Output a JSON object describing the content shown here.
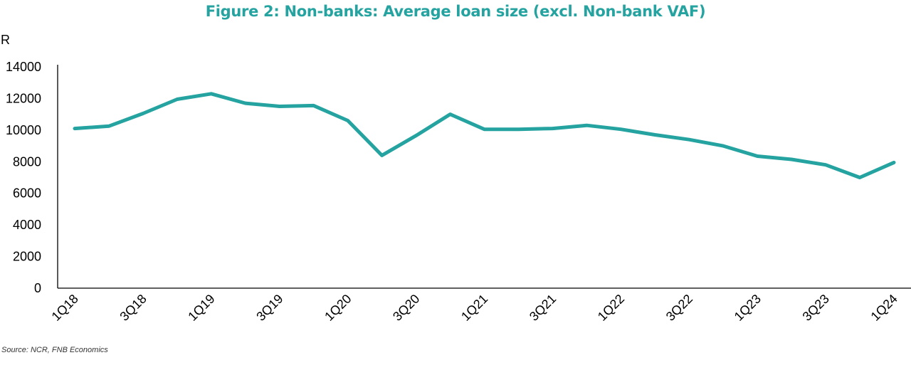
{
  "source": "Source: NCR, FNB Economics",
  "colors": {
    "title": "#25A3A0",
    "line": "#25A3A0",
    "axis": "#000000"
  },
  "chart_data": {
    "type": "line",
    "title": "Figure 2: Non-banks: Average loan size (excl. Non-bank VAF)",
    "xlabel": "",
    "ylabel": "R",
    "ylim": [
      0,
      14000
    ],
    "yticks": [
      0,
      2000,
      4000,
      6000,
      8000,
      10000,
      12000,
      14000
    ],
    "grid": false,
    "legend": "none",
    "x": [
      "1Q18",
      "2Q18",
      "3Q18",
      "4Q18",
      "1Q19",
      "2Q19",
      "3Q19",
      "4Q19",
      "1Q20",
      "2Q20",
      "3Q20",
      "4Q20",
      "1Q21",
      "2Q21",
      "3Q21",
      "4Q21",
      "1Q22",
      "2Q22",
      "3Q22",
      "4Q22",
      "1Q23",
      "2Q23",
      "3Q23",
      "4Q23",
      "1Q24"
    ],
    "xtick_labels": [
      "1Q18",
      "3Q18",
      "1Q19",
      "3Q19",
      "1Q20",
      "3Q20",
      "1Q21",
      "3Q21",
      "1Q22",
      "3Q22",
      "1Q23",
      "3Q23",
      "1Q24"
    ],
    "series": [
      {
        "values": [
          10100,
          10250,
          11050,
          11950,
          12300,
          11700,
          11500,
          11550,
          10600,
          8400,
          9650,
          11000,
          10050,
          10050,
          10100,
          10300,
          10050,
          9700,
          9400,
          9000,
          8350,
          8150,
          7800,
          7000,
          7950
        ]
      }
    ]
  }
}
